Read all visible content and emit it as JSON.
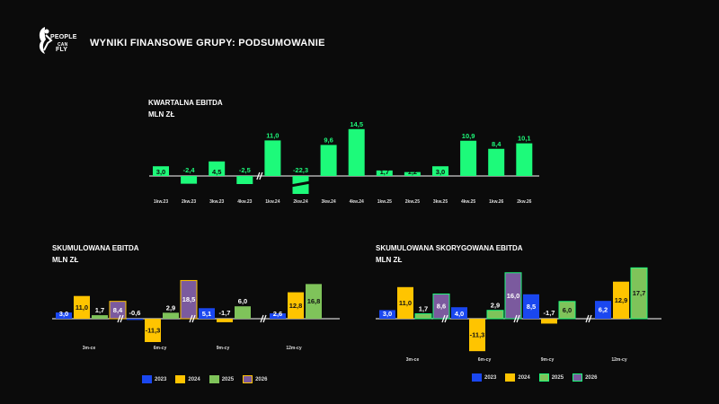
{
  "header": {
    "logo_line1": "PEOPLE",
    "logo_line2": "CAN",
    "logo_line3": "FLY",
    "title": "WYNIKI FINANSOWE GRUPY: PODSUMOWANIE"
  },
  "charts": {
    "quarterly": {
      "title_line1": "KWARTALNA EBITDA",
      "title_line2": "MLN ZŁ"
    },
    "cumulative": {
      "title_line1": "SKUMULOWANA EBITDA",
      "title_line2": "MLN ZŁ"
    },
    "adjusted": {
      "title_line1": "SKUMULOWANA SKORYGOWANA EBITDA",
      "title_line2": "MLN ZŁ"
    }
  },
  "colors": {
    "quarterly_bar": "#1dfa7a",
    "y2023": "#1a47f0",
    "y2024": "#ffc400",
    "y2025": "#7fc35a",
    "y2026": "#7b5a9e",
    "y2026_adjusted": "#7b5a9e"
  },
  "chart_data": [
    {
      "type": "bar",
      "title": "KWARTALNA EBITDA",
      "ylabel": "MLN ZŁ",
      "categories": [
        "1kw.23",
        "2kw.23",
        "3kw.23",
        "4kw.23",
        "1kw.24",
        "2kw.24",
        "3kw.24",
        "4kw.24",
        "1kw.25",
        "2kw.25",
        "3kw.25",
        "4kw.25",
        "1kw.26",
        "2kw.26"
      ],
      "values": [
        3.0,
        -2.4,
        4.5,
        -2.5,
        11.0,
        -22.3,
        9.6,
        14.5,
        1.7,
        1.2,
        3.0,
        10.9,
        8.4,
        10.1
      ],
      "value_labels": [
        "3,0",
        "-2,4",
        "4,5",
        "-2,5",
        "11,0",
        "-22,3",
        "9,6",
        "14,5",
        "1,7",
        "1,2",
        "3,0",
        "10,9",
        "8,4",
        "10,1"
      ],
      "axis_breaks": [
        "4kw.23/1kw.24",
        "2kw.24"
      ]
    },
    {
      "type": "bar",
      "title": "SKUMULOWANA EBITDA",
      "ylabel": "MLN ZŁ",
      "categories": [
        "3m-ce",
        "6m-cy",
        "9m-cy",
        "12m-cy"
      ],
      "legend": [
        "2023",
        "2024",
        "2025",
        "2026"
      ],
      "series": [
        {
          "name": "2023",
          "values": [
            3.0,
            -0.6,
            5.1,
            2.6
          ],
          "labels": [
            "3,0",
            "-0,6",
            "5,1",
            "2,6"
          ]
        },
        {
          "name": "2024",
          "values": [
            11.0,
            -11.3,
            -1.7,
            12.8
          ],
          "labels": [
            "11,0",
            "-11,3",
            "-1,7",
            "12,8"
          ]
        },
        {
          "name": "2025",
          "values": [
            1.7,
            2.9,
            6.0,
            16.8
          ],
          "labels": [
            "1,7",
            "2,9",
            "6,0",
            "16,8"
          ]
        },
        {
          "name": "2026",
          "values": [
            8.4,
            18.5,
            null,
            null
          ],
          "labels": [
            "8,4",
            "18,5",
            "",
            ""
          ]
        }
      ]
    },
    {
      "type": "bar",
      "title": "SKUMULOWANA SKORYGOWANA EBITDA",
      "ylabel": "MLN ZŁ",
      "categories": [
        "3m-ce",
        "6m-cy",
        "9m-cy",
        "12m-cy"
      ],
      "legend": [
        "2023",
        "2024",
        "2025",
        "2026"
      ],
      "series": [
        {
          "name": "2023",
          "values": [
            3.0,
            4.0,
            8.5,
            6.2
          ],
          "labels": [
            "3,0",
            "4,0",
            "8,5",
            "6,2"
          ]
        },
        {
          "name": "2024",
          "values": [
            11.0,
            -11.3,
            -1.7,
            12.9
          ],
          "labels": [
            "11,0",
            "-11,3",
            "-1,7",
            "12,9"
          ]
        },
        {
          "name": "2025",
          "values": [
            1.7,
            2.9,
            6.0,
            17.7
          ],
          "labels": [
            "1,7",
            "2,9",
            "6,0",
            "17,7"
          ]
        },
        {
          "name": "2026",
          "values": [
            8.6,
            16.0,
            null,
            null
          ],
          "labels": [
            "8,6",
            "16,0",
            "",
            ""
          ]
        }
      ]
    }
  ]
}
